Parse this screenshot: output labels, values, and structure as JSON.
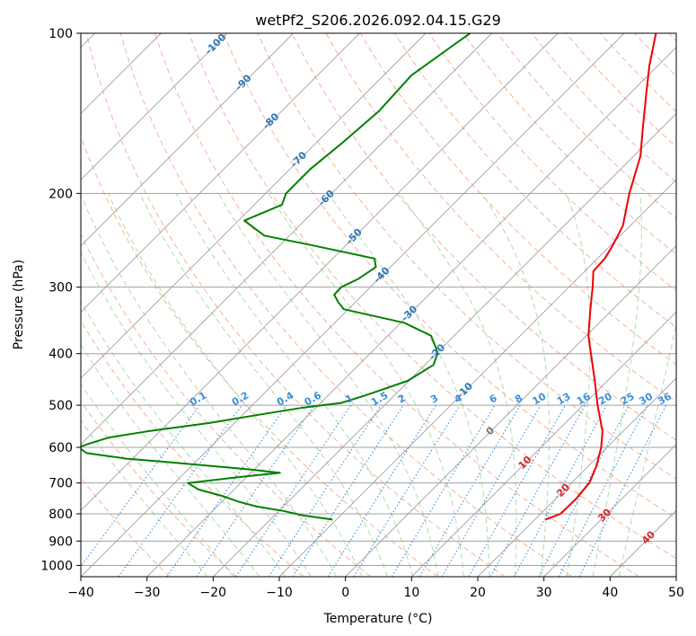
{
  "chart_data": {
    "type": "line",
    "title": "wetPf2_S206.2026.092.04.15.G29",
    "xlabel": "Temperature (°C)",
    "ylabel": "Pressure (hPa)",
    "xlim": [
      -40,
      50
    ],
    "ylim": [
      1050,
      100
    ],
    "yscale": "log",
    "grid": true,
    "x_ticks": [
      "−40",
      "−30",
      "−20",
      "−10",
      "0",
      "10",
      "20",
      "30",
      "40",
      "50"
    ],
    "x_tick_values": [
      -40,
      -30,
      -20,
      -10,
      0,
      10,
      20,
      30,
      40,
      50
    ],
    "y_ticks": [
      "100",
      "200",
      "300",
      "400",
      "500",
      "600",
      "700",
      "800",
      "900",
      "1000"
    ],
    "y_tick_values": [
      100,
      200,
      300,
      400,
      500,
      600,
      700,
      800,
      900,
      1000
    ],
    "isotherm_labels": [
      "-100",
      "-90",
      "-80",
      "-70",
      "-60",
      "-50",
      "-40",
      "-30",
      "-20",
      "-10",
      "0",
      "10",
      "20",
      "30",
      "40"
    ],
    "mixing_ratio_labels": [
      "0.1",
      "0.2",
      "0.4",
      "0.6",
      "1",
      "1.5",
      "2",
      "3",
      "4",
      "6",
      "8",
      "10",
      "13",
      "16",
      "20",
      "25",
      "30",
      "36"
    ],
    "colors": {
      "temperature": "#ee0000",
      "dewpoint": "#008000",
      "isotherm": "#a0a0a0",
      "dry_adiabat": "#f4a582",
      "moist_adiabat": "#a6d7a6",
      "mixing_ratio": "#3a8fdd",
      "isotherm_label_cold": "#2e78b7",
      "isotherm_label_warm": "#d62728",
      "isotherm_label_zero": "#777777"
    },
    "series": [
      {
        "key": "temperature",
        "pressure": [
          820,
          800,
          750,
          700,
          650,
          600,
          560,
          500,
          450,
          400,
          370,
          330,
          300,
          280,
          265,
          250,
          230,
          200,
          170,
          150,
          130,
          115,
          100
        ],
        "values": [
          21.6,
          23.0,
          23.1,
          22.7,
          21.2,
          19.1,
          16.9,
          12.2,
          8.1,
          3.4,
          0.3,
          -3.4,
          -6.4,
          -8.7,
          -8.9,
          -9.7,
          -11.1,
          -15.0,
          -19.0,
          -23.0,
          -27.5,
          -31.3,
          -35.2
        ]
      },
      {
        "key": "dewpoint",
        "pressure": [
          820,
          805,
          790,
          775,
          760,
          740,
          720,
          700,
          680,
          670,
          660,
          640,
          630,
          615,
          600,
          590,
          575,
          560,
          540,
          520,
          505,
          495,
          480,
          450,
          420,
          400,
          390,
          370,
          350,
          330,
          320,
          310,
          300,
          290,
          275,
          265,
          250,
          240,
          225,
          210,
          200,
          180,
          160,
          140,
          120,
          100
        ],
        "values": [
          -10.6,
          -15.8,
          -19.3,
          -24.0,
          -27.3,
          -30.9,
          -35.4,
          -38.0,
          -30.2,
          -25.6,
          -30.8,
          -43.8,
          -50.9,
          -57.8,
          -59.9,
          -58.8,
          -56.8,
          -52.0,
          -43.8,
          -37.2,
          -31.9,
          -26.9,
          -24.5,
          -20.2,
          -18.7,
          -19.8,
          -20.9,
          -23.5,
          -29.5,
          -40.7,
          -42.6,
          -44.3,
          -44.4,
          -43.1,
          -42.2,
          -43.7,
          -55.3,
          -63.8,
          -69.1,
          -65.8,
          -66.9,
          -66.9,
          -66.0,
          -65.3,
          -65.8,
          -63.3
        ]
      }
    ]
  }
}
